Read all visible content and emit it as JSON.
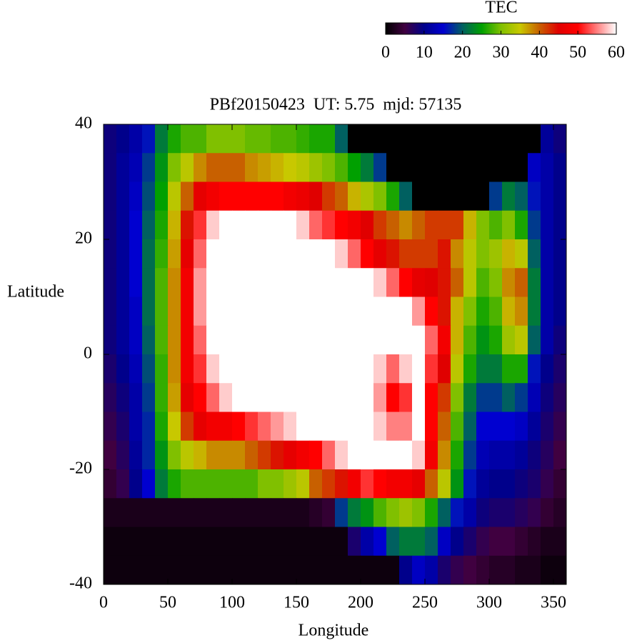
{
  "chart_data": {
    "type": "heatmap",
    "title": "PBf20150423  UT: 5.75  mjd: 57135",
    "x_label": "Longitude",
    "y_label": "Latitude",
    "xlim": [
      0,
      360
    ],
    "ylim": [
      -40,
      40
    ],
    "xticks": [
      0,
      50,
      100,
      150,
      200,
      250,
      300,
      350
    ],
    "yticks": [
      -40,
      -20,
      0,
      20,
      40
    ],
    "x": [
      5,
      15,
      25,
      35,
      45,
      55,
      65,
      75,
      85,
      95,
      105,
      115,
      125,
      135,
      145,
      155,
      165,
      175,
      185,
      195,
      205,
      215,
      225,
      235,
      245,
      255,
      265,
      275,
      285,
      295,
      305,
      315,
      325,
      335,
      345,
      355
    ],
    "y": [
      37.5,
      32.5,
      27.5,
      22.5,
      17.5,
      12.5,
      7.5,
      2.5,
      -2.5,
      -7.5,
      -12.5,
      -17.5,
      -22.5,
      -27.5,
      -32.5,
      -37.5
    ],
    "values": [
      [
        9,
        10,
        12,
        16,
        22,
        26,
        28,
        28,
        30,
        30,
        30,
        29,
        29,
        28,
        28,
        27,
        26,
        26,
        20,
        0,
        0,
        0,
        0,
        0,
        0,
        0,
        0,
        0,
        0,
        0,
        0,
        0,
        0,
        0,
        11,
        9
      ],
      [
        9,
        11,
        13,
        18,
        24,
        30,
        34,
        38,
        40,
        40,
        40,
        38,
        37,
        36,
        35,
        34,
        32,
        30,
        28,
        25,
        22,
        18,
        0,
        0,
        0,
        0,
        0,
        0,
        0,
        0,
        0,
        0,
        0,
        14,
        12,
        10
      ],
      [
        9,
        11,
        14,
        19,
        25,
        34,
        40,
        46,
        48,
        50,
        50,
        50,
        50,
        50,
        48,
        47,
        45,
        42,
        40,
        36,
        33,
        30,
        26,
        20,
        0,
        0,
        0,
        0,
        0,
        0,
        18,
        22,
        20,
        16,
        12,
        10
      ],
      [
        9,
        11,
        15,
        20,
        26,
        36,
        44,
        52,
        58,
        60,
        60,
        60,
        60,
        60,
        60,
        58,
        54,
        52,
        50,
        48,
        45,
        42,
        40,
        38,
        40,
        42,
        42,
        42,
        36,
        30,
        28,
        30,
        26,
        18,
        12,
        10
      ],
      [
        9,
        11,
        15,
        21,
        27,
        37,
        46,
        54,
        60,
        60,
        60,
        60,
        60,
        60,
        60,
        60,
        60,
        60,
        58,
        54,
        50,
        46,
        44,
        42,
        42,
        42,
        44,
        38,
        34,
        30,
        32,
        36,
        34,
        20,
        12,
        10
      ],
      [
        9,
        11,
        15,
        21,
        28,
        38,
        48,
        56,
        60,
        60,
        60,
        60,
        60,
        60,
        60,
        60,
        60,
        60,
        60,
        60,
        60,
        58,
        54,
        50,
        46,
        45,
        44,
        40,
        34,
        28,
        30,
        38,
        40,
        22,
        12,
        10
      ],
      [
        9,
        11,
        14,
        21,
        28,
        38,
        48,
        56,
        60,
        60,
        60,
        60,
        60,
        60,
        60,
        60,
        60,
        60,
        60,
        60,
        60,
        60,
        60,
        60,
        56,
        50,
        44,
        36,
        30,
        26,
        28,
        36,
        38,
        22,
        12,
        10
      ],
      [
        9,
        11,
        14,
        20,
        28,
        38,
        48,
        54,
        60,
        60,
        60,
        60,
        60,
        60,
        60,
        60,
        60,
        60,
        60,
        60,
        60,
        60,
        60,
        60,
        60,
        54,
        48,
        36,
        28,
        24,
        26,
        32,
        34,
        20,
        12,
        9
      ],
      [
        8,
        10,
        13,
        19,
        27,
        38,
        48,
        52,
        58,
        60,
        60,
        60,
        60,
        60,
        60,
        60,
        60,
        60,
        60,
        60,
        60,
        58,
        54,
        58,
        60,
        52,
        45,
        34,
        26,
        22,
        22,
        26,
        26,
        16,
        10,
        8
      ],
      [
        7,
        9,
        12,
        18,
        27,
        37,
        46,
        50,
        54,
        58,
        60,
        60,
        60,
        60,
        60,
        60,
        60,
        60,
        60,
        60,
        60,
        56,
        50,
        52,
        60,
        50,
        42,
        30,
        22,
        18,
        18,
        20,
        18,
        13,
        9,
        7
      ],
      [
        6,
        8,
        12,
        17,
        26,
        35,
        42,
        46,
        48,
        48,
        50,
        52,
        54,
        56,
        58,
        60,
        60,
        60,
        60,
        60,
        60,
        58,
        55,
        55,
        60,
        50,
        40,
        28,
        20,
        15,
        15,
        15,
        14,
        11,
        8,
        6
      ],
      [
        5,
        7,
        11,
        17,
        24,
        30,
        34,
        36,
        38,
        38,
        38,
        40,
        42,
        44,
        46,
        48,
        50,
        54,
        58,
        60,
        60,
        60,
        60,
        60,
        58,
        48,
        38,
        26,
        18,
        13,
        12,
        12,
        11,
        9,
        7,
        5
      ],
      [
        4,
        6,
        10,
        15,
        22,
        26,
        28,
        28,
        28,
        28,
        28,
        28,
        30,
        30,
        32,
        34,
        40,
        42,
        44,
        48,
        52,
        50,
        48,
        48,
        46,
        40,
        34,
        24,
        16,
        11,
        10,
        10,
        9,
        8,
        6,
        4
      ],
      [
        2,
        2,
        2,
        2,
        2,
        2,
        2,
        2,
        2,
        2,
        2,
        2,
        2,
        2,
        2,
        2,
        3,
        4,
        18,
        22,
        24,
        28,
        30,
        32,
        30,
        26,
        20,
        16,
        12,
        9,
        8,
        8,
        7,
        6,
        4,
        3
      ],
      [
        1,
        1,
        1,
        1,
        1,
        1,
        1,
        1,
        1,
        1,
        1,
        1,
        1,
        1,
        1,
        1,
        1,
        1,
        1,
        8,
        12,
        15,
        20,
        22,
        22,
        20,
        14,
        10,
        8,
        6,
        5,
        5,
        4,
        3,
        2,
        2
      ],
      [
        1,
        1,
        1,
        1,
        1,
        1,
        1,
        1,
        1,
        1,
        1,
        1,
        1,
        1,
        1,
        1,
        1,
        1,
        1,
        1,
        1,
        1,
        1,
        10,
        14,
        12,
        8,
        6,
        5,
        4,
        3,
        3,
        2,
        2,
        1,
        1
      ]
    ],
    "colorbar": {
      "label": "TEC",
      "lim": [
        0,
        60
      ],
      "ticks": [
        0,
        10,
        20,
        30,
        40,
        50,
        60
      ]
    },
    "colormap": [
      "#000000",
      "#400040",
      "#00008b",
      "#0000d0",
      "#006060",
      "#00a000",
      "#80c000",
      "#c8c800",
      "#c86000",
      "#e00000",
      "#ff0000",
      "#ff8080",
      "#ffffff"
    ]
  }
}
